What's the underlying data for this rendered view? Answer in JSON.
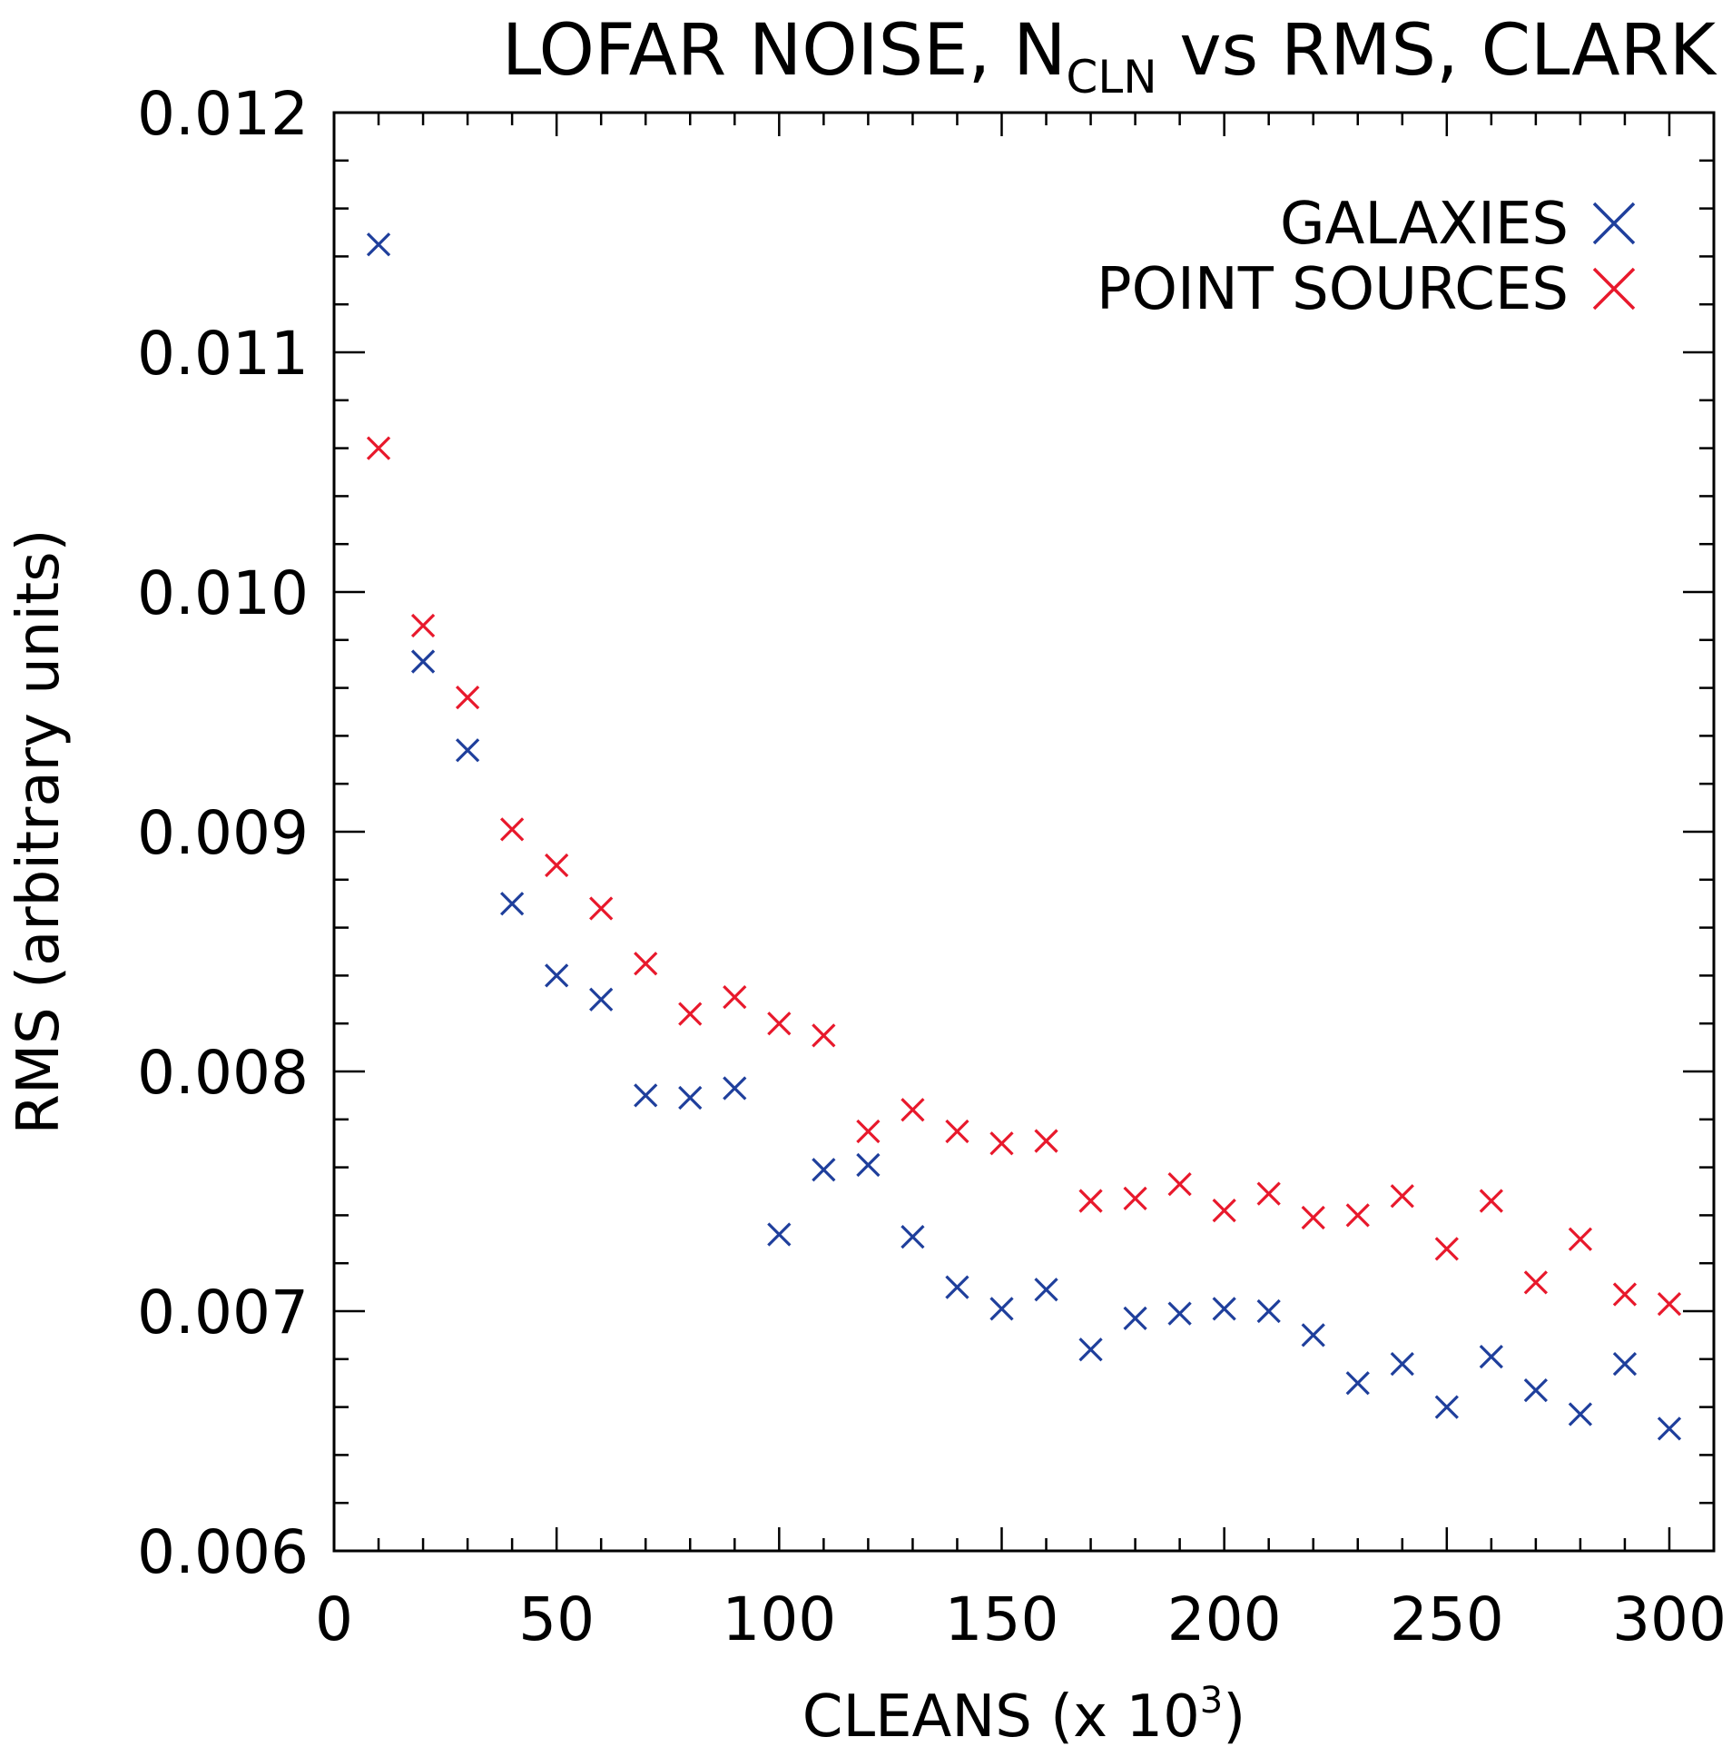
{
  "chart_data": {
    "type": "scatter",
    "title": "LOFAR NOISE, N",
    "title_subscript": "CLN",
    "title_suffix": " vs RMS, CLARK",
    "xlabel": "CLEANS (x 10",
    "xlabel_superscript": "3",
    "xlabel_suffix": ")",
    "ylabel": "RMS (arbitrary units)",
    "xlim": [
      0,
      310
    ],
    "ylim": [
      0.006,
      0.012
    ],
    "xticks": [
      0,
      50,
      100,
      150,
      200,
      250,
      300
    ],
    "xtick_labels": [
      "0",
      "50",
      "100",
      "150",
      "200",
      "250",
      "300"
    ],
    "yticks": [
      0.006,
      0.007,
      0.008,
      0.009,
      0.01,
      0.011,
      0.012
    ],
    "ytick_labels": [
      "0.006",
      "0.007",
      "0.008",
      "0.009",
      "0.010",
      "0.011",
      "0.012"
    ],
    "marker": "x",
    "grid": false,
    "legend_position": "top-right",
    "x": [
      10,
      20,
      30,
      40,
      50,
      60,
      70,
      80,
      90,
      100,
      110,
      120,
      130,
      140,
      150,
      160,
      170,
      180,
      190,
      200,
      210,
      220,
      230,
      240,
      250,
      260,
      270,
      280,
      290,
      300
    ],
    "series": [
      {
        "name": "GALAXIES",
        "color": "#1f3f9c",
        "values": [
          0.01145,
          0.00971,
          0.00934,
          0.0087,
          0.0084,
          0.0083,
          0.0079,
          0.00789,
          0.00793,
          0.00732,
          0.00759,
          0.00761,
          0.00731,
          0.0071,
          0.00701,
          0.00709,
          0.00684,
          0.00697,
          0.00699,
          0.00701,
          0.007,
          0.0069,
          0.0067,
          0.00678,
          0.0066,
          0.00681,
          0.00667,
          0.00657,
          0.00678,
          0.00651
        ]
      },
      {
        "name": "POINT SOURCES",
        "color": "#e8192c",
        "values": [
          0.0106,
          0.00986,
          0.00956,
          0.00901,
          0.00886,
          0.00868,
          0.00845,
          0.00824,
          0.00831,
          0.0082,
          0.00815,
          0.00775,
          0.00784,
          0.00775,
          0.0077,
          0.00771,
          0.00746,
          0.00747,
          0.00753,
          0.00742,
          0.00749,
          0.00739,
          0.0074,
          0.00748,
          0.00726,
          0.00746,
          0.00712,
          0.0073,
          0.00707,
          0.00703
        ]
      }
    ]
  }
}
